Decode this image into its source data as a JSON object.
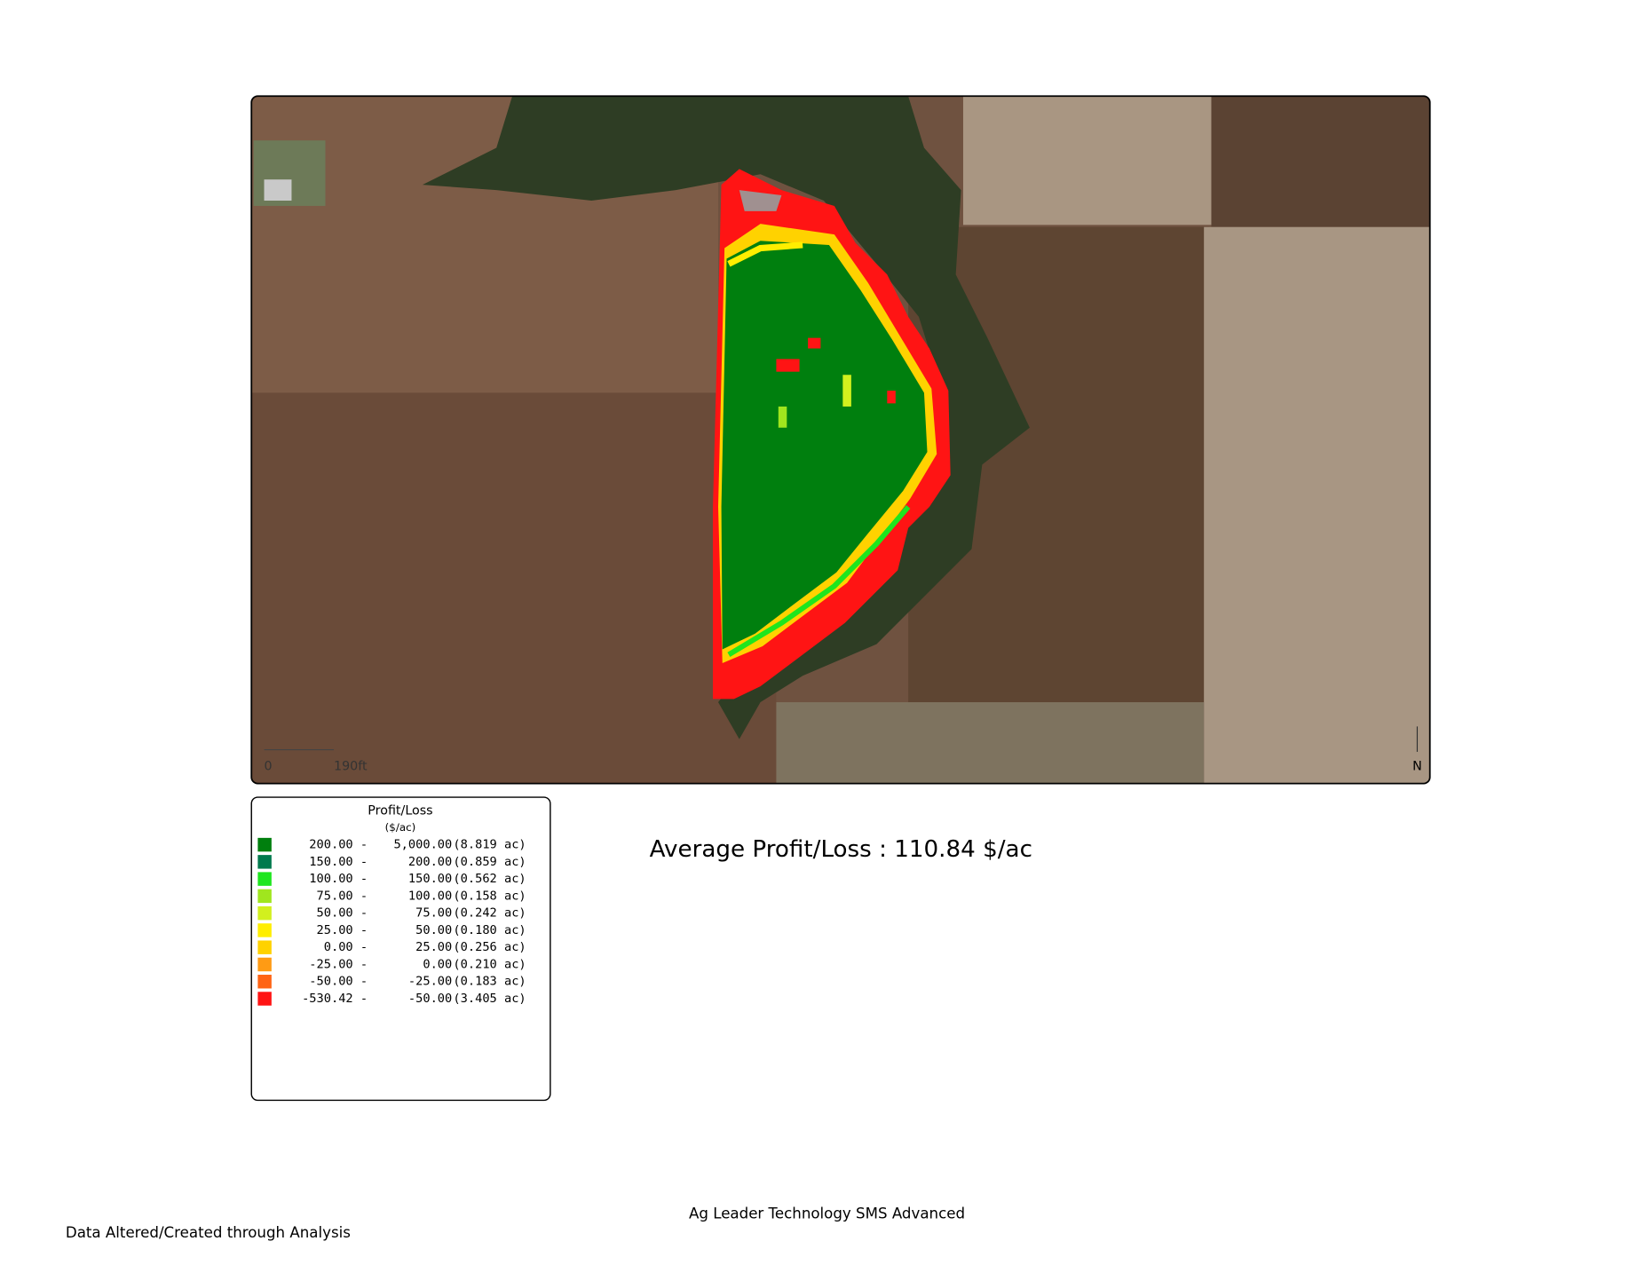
{
  "map": {
    "scale_bar": {
      "start": "0",
      "end": "190ft"
    },
    "north": "N"
  },
  "legend": {
    "title": "Profit/Loss",
    "unit": "($/ac)",
    "rows": [
      {
        "color": "#007f0e",
        "low": "200.00 -",
        "high": "5,000.00",
        "area": "(8.819 ac)"
      },
      {
        "color": "#007a4d",
        "low": "150.00 -",
        "high": "200.00",
        "area": "(0.859 ac)"
      },
      {
        "color": "#1ee61e",
        "low": "100.00 -",
        "high": "150.00",
        "area": "(0.562 ac)"
      },
      {
        "color": "#a0e61e",
        "low": "75.00 -",
        "high": "100.00",
        "area": "(0.158 ac)"
      },
      {
        "color": "#d2f01e",
        "low": "50.00 -",
        "high": "75.00",
        "area": "(0.242 ac)"
      },
      {
        "color": "#ffee00",
        "low": "25.00 -",
        "high": "50.00",
        "area": "(0.180 ac)"
      },
      {
        "color": "#ffd200",
        "low": "0.00 -",
        "high": "25.00",
        "area": "(0.256 ac)"
      },
      {
        "color": "#ff9b14",
        "low": "-25.00 -",
        "high": "0.00",
        "area": "(0.210 ac)"
      },
      {
        "color": "#ff6414",
        "low": "-50.00 -",
        "high": "-25.00",
        "area": "(0.183 ac)"
      },
      {
        "color": "#ff1414",
        "low": "-530.42 -",
        "high": "-50.00",
        "area": "(3.405 ac)"
      }
    ]
  },
  "summary": "Average Profit/Loss : 110.84 $/ac",
  "footer": {
    "software": "Ag Leader Technology SMS Advanced",
    "note": "Data Altered/Created through Analysis"
  }
}
